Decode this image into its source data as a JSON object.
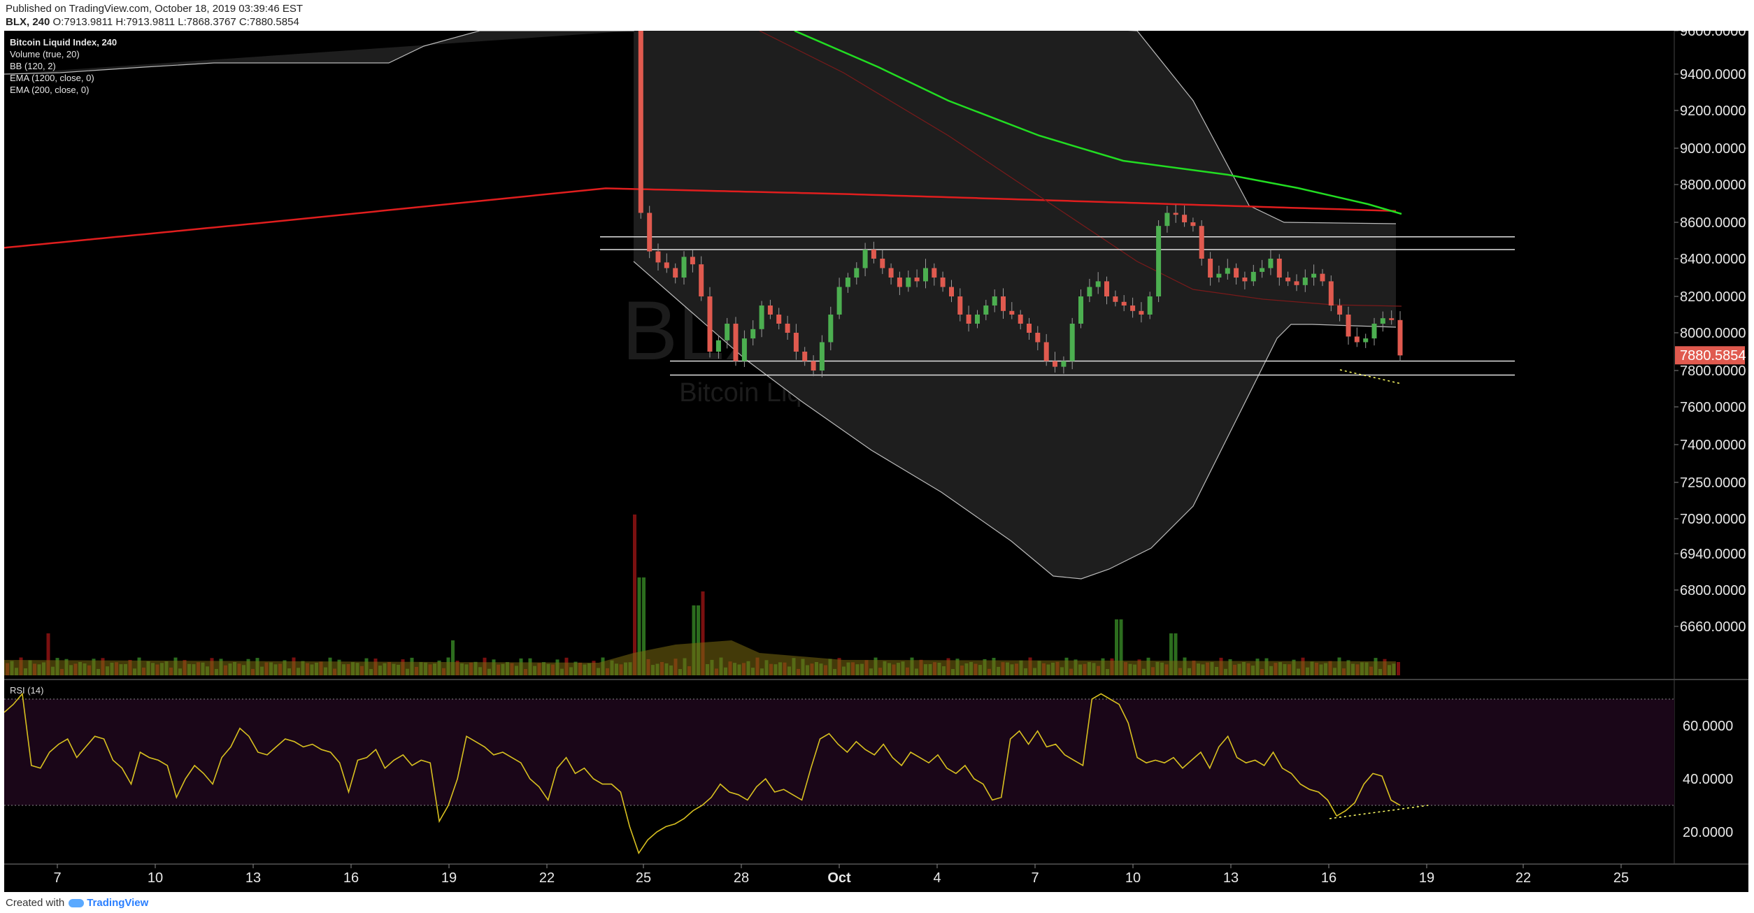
{
  "header": {
    "published": "Published on TradingView.com, October 18, 2019 03:39:46 EST",
    "symbol": "BLX, 240",
    "ohlc": "O:7913.9811 H:7913.9811 L:7868.3767 C:7880.5854"
  },
  "legend": {
    "title": "Bitcoin Liquid Index, 240",
    "items": [
      "Volume (true, 20)",
      "BB (120, 2)",
      "EMA (1200, close, 0)",
      "EMA (200, close, 0)"
    ]
  },
  "watermark": {
    "symbol": "BLX, 240",
    "name": "Bitcoin Liquid Index"
  },
  "rsi_label": "RSI (14)",
  "last_price_label": "7880.5854",
  "footer": {
    "created_with": "Created with",
    "brand": "TradingView"
  },
  "colors": {
    "background": "#000000",
    "up_candle": "#4caf50",
    "down_candle": "#e05a4f",
    "ema200": "#e01e1e",
    "ema1200": "#22dd22",
    "rsi_line": "#d8c020",
    "trendline": "#ffff66",
    "last_price_badge": "#e05a4f"
  },
  "chart_data": [
    {
      "type": "candlestick",
      "title": "Bitcoin Liquid Index, 240",
      "ylim": [
        6660,
        9600
      ],
      "y_ticks": [
        9600,
        9400,
        9200,
        9000,
        8800,
        8600,
        8400,
        8200,
        8000,
        7800,
        7600,
        7400,
        7250,
        7090,
        6940,
        6800,
        6660
      ],
      "y_tick_labels": [
        "9600.0000",
        "9400.0000",
        "9200.0000",
        "9000.0000",
        "8800.0000",
        "8600.0000",
        "8400.0000",
        "8200.0000",
        "8000.0000",
        "7800.0000",
        "7600.0000",
        "7400.0000",
        "7250.0000",
        "7090.0000",
        "6940.0000",
        "6800.0000",
        "6660.0000"
      ],
      "x_ticks": [
        7,
        10,
        13,
        16,
        19,
        22,
        25,
        28,
        "Oct",
        4,
        7,
        10,
        13,
        16,
        19,
        22,
        25
      ],
      "x_tick_labels": [
        "7",
        "10",
        "13",
        "16",
        "19",
        "22",
        "25",
        "28",
        "Oct",
        "4",
        "7",
        "10",
        "13",
        "16",
        "19",
        "22",
        "25"
      ],
      "horizontal_levels": [
        8520,
        8450,
        7850,
        7775
      ],
      "closes": [
        9800,
        8650,
        8440,
        8380,
        8350,
        8300,
        8410,
        8370,
        8200,
        7900,
        7960,
        8050,
        7850,
        7970,
        8020,
        8150,
        8100,
        8050,
        8000,
        7900,
        7850,
        7800,
        7950,
        8100,
        8250,
        8300,
        8350,
        8450,
        8400,
        8350,
        8300,
        8250,
        8300,
        8280,
        8350,
        8300,
        8250,
        8200,
        8100,
        8050,
        8100,
        8150,
        8200,
        8120,
        8100,
        8050,
        8000,
        7950,
        7850,
        7820,
        7850,
        8050,
        8200,
        8250,
        8280,
        8200,
        8170,
        8150,
        8120,
        8100,
        8200,
        8580,
        8650,
        8640,
        8600,
        8580,
        8400,
        8300,
        8320,
        8350,
        8300,
        8280,
        8330,
        8350,
        8400,
        8300,
        8280,
        8260,
        8300,
        8320,
        8280,
        8150,
        8100,
        7980,
        7950,
        7970,
        8050,
        8080,
        8070,
        7880
      ],
      "ema200_label": "EMA (200, close, 0)",
      "ema1200_label": "EMA (1200, close, 0)",
      "bb_label": "BB (120, 2)",
      "volume_label": "Volume (true, 20)"
    },
    {
      "type": "line",
      "title": "RSI (14)",
      "ylim": [
        10,
        75
      ],
      "y_ticks": [
        60,
        40,
        20
      ],
      "y_tick_labels": [
        "60.0000",
        "40.0000",
        "20.0000"
      ],
      "bands": [
        70,
        30
      ],
      "values": [
        65,
        68,
        72,
        45,
        44,
        50,
        53,
        55,
        48,
        52,
        56,
        55,
        47,
        44,
        38,
        50,
        48,
        47,
        45,
        33,
        40,
        45,
        42,
        38,
        48,
        52,
        59,
        56,
        50,
        49,
        52,
        55,
        54,
        52,
        53,
        51,
        50,
        46,
        35,
        47,
        48,
        51,
        44,
        47,
        49,
        45,
        47,
        46,
        24,
        30,
        40,
        56,
        54,
        52,
        49,
        50,
        48,
        46,
        40,
        37,
        32,
        44,
        48,
        42,
        44,
        40,
        38,
        38,
        35,
        22,
        12,
        17,
        20,
        22,
        23,
        25,
        28,
        30,
        33,
        38,
        35,
        34,
        32,
        37,
        40,
        35,
        36,
        34,
        32,
        44,
        55,
        57,
        53,
        50,
        54,
        51,
        49,
        53,
        48,
        45,
        50,
        48,
        46,
        49,
        44,
        42,
        45,
        40,
        38,
        32,
        33,
        55,
        58,
        53,
        58,
        52,
        53,
        49,
        47,
        45,
        70,
        72,
        70,
        68,
        61,
        48,
        46,
        47,
        46,
        48,
        44,
        47,
        50,
        44,
        52,
        56,
        48,
        46,
        47,
        45,
        50,
        44,
        42,
        38,
        36,
        35,
        32,
        26,
        28,
        31,
        38,
        42,
        41,
        32,
        30
      ],
      "trendline": [
        [
          0,
          25
        ],
        [
          1,
          30
        ]
      ]
    }
  ]
}
